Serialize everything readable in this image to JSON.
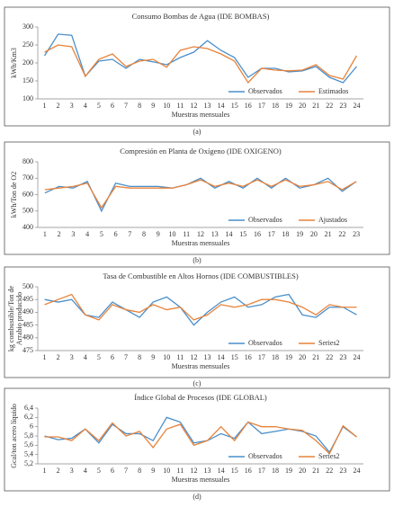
{
  "chart_data": [
    {
      "type": "line",
      "title": "Consumo Bombas de Agua (IDE BOMBAS)",
      "ylabel": "kWh/Km3",
      "xlabel": "Muestras mensuales",
      "caption": "(a)",
      "categories": [
        1,
        2,
        3,
        4,
        5,
        6,
        7,
        8,
        9,
        10,
        11,
        12,
        13,
        14,
        15,
        16,
        17,
        18,
        19,
        20,
        21,
        22,
        23,
        24
      ],
      "ylim": [
        100,
        300
      ],
      "yticks": [
        100,
        150,
        200,
        250,
        300
      ],
      "series": [
        {
          "name": "Observados",
          "color": "#4a8fca",
          "values": [
            220,
            280,
            277,
            163,
            205,
            210,
            185,
            210,
            203,
            195,
            215,
            230,
            262,
            235,
            215,
            160,
            185,
            185,
            175,
            178,
            190,
            160,
            145,
            190
          ]
        },
        {
          "name": "Estimados",
          "color": "#e8823a",
          "values": [
            230,
            250,
            245,
            163,
            210,
            225,
            190,
            205,
            210,
            188,
            235,
            245,
            240,
            225,
            205,
            145,
            185,
            180,
            178,
            180,
            195,
            165,
            155,
            220
          ]
        }
      ]
    },
    {
      "type": "line",
      "title": "Compresión en Planta de Oxígeno (IDE OXIGENO)",
      "ylabel": "kWh/Ton de O2",
      "xlabel": "Muestras mensuales",
      "caption": "(b)",
      "categories": [
        1,
        2,
        3,
        4,
        5,
        6,
        7,
        8,
        9,
        10,
        11,
        12,
        13,
        14,
        15,
        16,
        17,
        18,
        19,
        20,
        21,
        22,
        23
      ],
      "ylim": [
        400,
        800
      ],
      "yticks": [
        400,
        500,
        600,
        700,
        800
      ],
      "series": [
        {
          "name": "Observados",
          "color": "#4a8fca",
          "values": [
            610,
            650,
            640,
            680,
            500,
            670,
            650,
            650,
            650,
            640,
            660,
            700,
            640,
            680,
            640,
            700,
            640,
            700,
            640,
            660,
            700,
            620,
            680
          ]
        },
        {
          "name": "Ajustados",
          "color": "#e8823a",
          "values": [
            630,
            640,
            650,
            670,
            520,
            650,
            640,
            640,
            640,
            640,
            660,
            690,
            650,
            670,
            650,
            690,
            650,
            690,
            650,
            660,
            680,
            630,
            680
          ]
        }
      ]
    },
    {
      "type": "line",
      "title": "Tasa de Combustible en Altos Hornos (IDE COMBUSTIBLES)",
      "ylabel": [
        "kg combustible/Ton de",
        "Arrabio producido"
      ],
      "xlabel": "Muestras mensuales",
      "caption": "(c)",
      "categories": [
        1,
        2,
        3,
        4,
        5,
        6,
        7,
        8,
        9,
        10,
        11,
        12,
        13,
        14,
        15,
        16,
        17,
        18,
        19,
        20,
        21,
        22,
        23,
        24
      ],
      "ylim": [
        475,
        500
      ],
      "yticks": [
        475,
        480,
        485,
        490,
        495,
        500
      ],
      "series": [
        {
          "name": "Observados",
          "color": "#4a8fca",
          "values": [
            495,
            494,
            495,
            489,
            488,
            494,
            491,
            488,
            494,
            496,
            492,
            485,
            490,
            494,
            496,
            492,
            493,
            496,
            497,
            489,
            488,
            492,
            492,
            489
          ]
        },
        {
          "name": "Series2",
          "color": "#e8823a",
          "values": [
            493,
            495,
            497,
            489,
            487,
            493,
            491,
            490,
            493,
            491,
            492,
            487,
            489,
            493,
            492,
            493,
            495,
            495,
            494,
            492,
            489,
            493,
            492,
            492
          ]
        }
      ]
    },
    {
      "type": "line",
      "title": "Índice Global de Procesos (IDE GLOBAL)",
      "ylabel": "Gcal/ton acero líquido",
      "xlabel": "Muestras mensuales",
      "caption": "(d)",
      "categories": [
        1,
        2,
        3,
        4,
        5,
        6,
        7,
        8,
        9,
        10,
        11,
        12,
        13,
        14,
        15,
        16,
        17,
        18,
        19,
        20,
        21,
        22,
        23,
        24
      ],
      "ylim": [
        5.2,
        6.4
      ],
      "yticks": [
        {
          "value": 5.2,
          "label": "5,2"
        },
        {
          "value": 5.4,
          "label": "5,4"
        },
        {
          "value": 5.6,
          "label": "5,6"
        },
        {
          "value": 5.8,
          "label": "5,8"
        },
        {
          "value": 6,
          "label": "6"
        },
        {
          "value": 6.2,
          "label": "6,2"
        },
        {
          "value": 6.4,
          "label": "6,4"
        }
      ],
      "series": [
        {
          "name": "Observados",
          "color": "#4a8fca",
          "values": [
            5.8,
            5.72,
            5.75,
            5.95,
            5.65,
            6.05,
            5.85,
            5.85,
            5.7,
            6.2,
            6.1,
            5.65,
            5.7,
            5.85,
            5.75,
            6.1,
            5.85,
            5.9,
            5.95,
            5.9,
            5.8,
            5.45,
            6.0,
            5.78
          ]
        },
        {
          "name": "Series2",
          "color": "#e8823a",
          "values": [
            5.78,
            5.78,
            5.7,
            5.95,
            5.7,
            6.08,
            5.8,
            5.9,
            5.55,
            5.95,
            6.05,
            5.6,
            5.7,
            6.0,
            5.7,
            6.1,
            6.0,
            6.0,
            5.95,
            5.92,
            5.7,
            5.42,
            6.02,
            5.78
          ]
        }
      ]
    }
  ]
}
